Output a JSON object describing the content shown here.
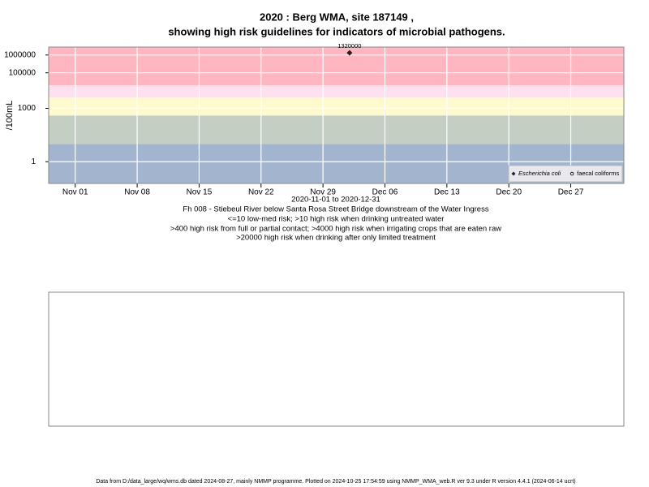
{
  "chart_data": {
    "type": "scatter",
    "title": "2020 : Berg WMA, site 187149 ,",
    "subtitle": "showing high risk guidelines for indicators of microbial pathogens.",
    "y_label": "/100mL",
    "x_label": "2020-11-01 to 2020-12-31",
    "notes": [
      "Fh 008 - Stiebeul River below Santa Rosa Street Bridge downstream of the Water Ingress",
      "<=10 low-med risk; >10 high risk when drinking untreated water",
      ">400 high risk from full or partial contact; >4000 high risk when irrigating crops that are eaten raw",
      ">20000 high risk when drinking after only limited treatment"
    ],
    "footer": "Data from D:/data_large/wq/wms.db dated 2024-08-27, mainly NMMP programme. Plotted on 2024-10-25 17:54:59 using NMMP_WMA_web.R ver 9.3 under R version 4.4.1 (2024-06-14 ucrt)",
    "log_y": true,
    "ylim": [
      0.06,
      2800000
    ],
    "yticks": [
      1,
      1000,
      100000,
      1000000
    ],
    "xlim": [
      "2020-10-29",
      "2021-01-02"
    ],
    "xticks": [
      {
        "value": "2020-11-01",
        "label": "Nov 01"
      },
      {
        "value": "2020-11-08",
        "label": "Nov 08"
      },
      {
        "value": "2020-11-15",
        "label": "Nov 15"
      },
      {
        "value": "2020-11-22",
        "label": "Nov 22"
      },
      {
        "value": "2020-11-29",
        "label": "Nov 29"
      },
      {
        "value": "2020-12-06",
        "label": "Dec 06"
      },
      {
        "value": "2020-12-13",
        "label": "Dec 13"
      },
      {
        "value": "2020-12-20",
        "label": "Dec 20"
      },
      {
        "value": "2020-12-27",
        "label": "Dec 27"
      }
    ],
    "grid": true,
    "band_breaks": [
      10,
      400,
      4000,
      20000
    ],
    "band_colors": [
      "#a3b4cf",
      "#c3cfc3",
      "#fffacd",
      "#ffe0ee",
      "#ffb6c1"
    ],
    "legend_position": "bottom-right",
    "series": [
      {
        "name": "Escherichia coli",
        "color": "#222222",
        "marker": "diamond",
        "x": [
          "2020-12-02"
        ],
        "values": [
          1320000
        ]
      },
      {
        "name": "faecal coliforms",
        "color": "#222222",
        "marker": "circle",
        "x": [],
        "values": []
      }
    ]
  }
}
